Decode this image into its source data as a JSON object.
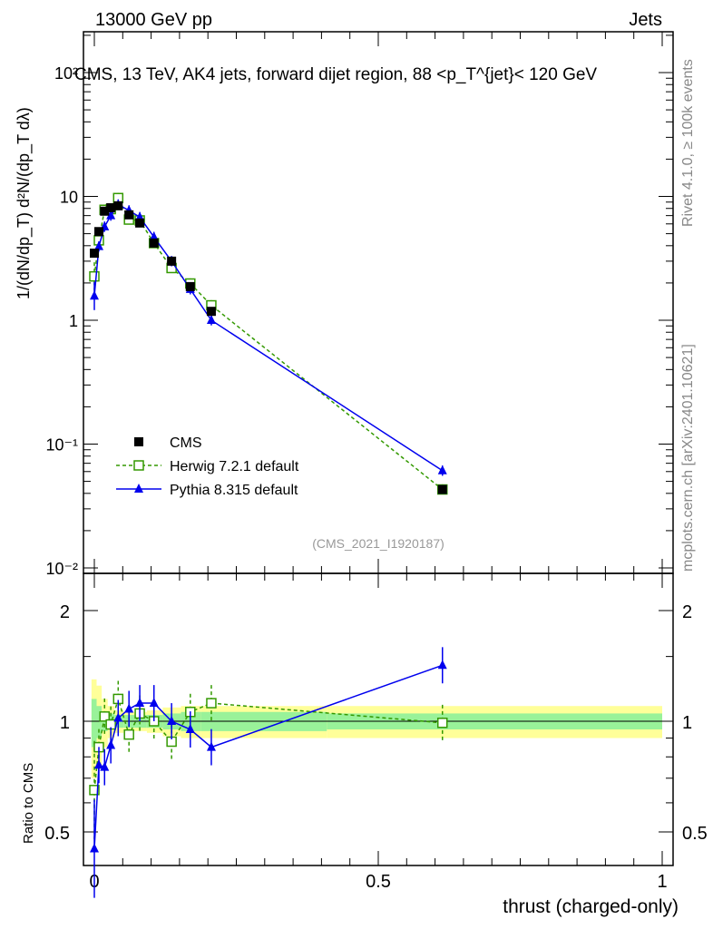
{
  "header": {
    "left": "13000 GeV pp",
    "right": "Jets"
  },
  "side_labels": {
    "rivet": "Rivet 4.1.0, ≥ 100k events",
    "mcplots": "mcplots.cern.ch [arXiv:2401.10621]"
  },
  "chart_data": [
    {
      "type": "line",
      "title": "CMS, 13 TeV, AK4 jets, forward dijet region, 88 <p_T^{jet}< 120 GeV",
      "ylabel": "1/(dN/dp_T) d²N/(dp_T dλ)",
      "yscale": "log",
      "ylim": [
        0.01,
        200
      ],
      "yticks": [
        "10⁻²",
        "10⁻¹",
        "1",
        "10",
        "10²"
      ],
      "xlim": [
        -0.01,
        1.0
      ],
      "x": [
        0,
        0.008,
        0.018,
        0.029,
        0.042,
        0.061,
        0.08,
        0.105,
        0.136,
        0.169,
        0.206,
        0.613
      ],
      "series": [
        {
          "name": "CMS",
          "values": [
            3.48,
            5.2,
            7.6,
            8.1,
            8.4,
            7.1,
            6.1,
            4.2,
            3.0,
            1.87,
            1.18,
            0.043
          ],
          "color": "#000000"
        },
        {
          "name": "Herwig 7.2.1 default",
          "values": [
            2.26,
            4.42,
            7.8,
            7.9,
            9.7,
            6.5,
            6.4,
            4.2,
            2.64,
            1.98,
            1.32,
            0.043
          ],
          "color": "#339900"
        },
        {
          "name": "Pythia 8.315 default",
          "values": [
            1.57,
            3.95,
            5.7,
            7.0,
            8.6,
            7.7,
            6.8,
            4.7,
            3.0,
            1.78,
            1.0,
            0.061
          ],
          "color": "#0000ee"
        }
      ],
      "annotation": "(CMS_2021_I1920187)",
      "legend": "lower-left"
    },
    {
      "type": "line",
      "ylabel": "Ratio to CMS",
      "yscale": "log",
      "ylim": [
        0.4,
        2.4
      ],
      "yticks": [
        "0.5",
        "1",
        "2"
      ],
      "xlabel": "thrust (charged-only)",
      "xticks": [
        "0",
        "0.5",
        "1"
      ],
      "xlim": [
        -0.01,
        1.0
      ],
      "x": [
        0,
        0.008,
        0.018,
        0.029,
        0.042,
        0.061,
        0.08,
        0.105,
        0.136,
        0.169,
        0.206,
        0.613
      ],
      "series": [
        {
          "name": "Herwig 7.2.1 default",
          "values": [
            0.65,
            0.85,
            1.03,
            0.98,
            1.15,
            0.92,
            1.05,
            1.0,
            0.88,
            1.06,
            1.12,
            0.99
          ]
        },
        {
          "name": "Pythia 8.315 default",
          "values": [
            0.45,
            0.76,
            0.75,
            0.86,
            1.02,
            1.08,
            1.12,
            1.12,
            1.0,
            0.95,
            0.85,
            1.42
          ]
        }
      ],
      "band_total": [
        0.3,
        0.25,
        0.15,
        0.1,
        0.07,
        0.06,
        0.06,
        0.07,
        0.09,
        0.1,
        0.1,
        0.1
      ],
      "band_stat": [
        0.15,
        0.1,
        0.06,
        0.05,
        0.04,
        0.04,
        0.04,
        0.04,
        0.05,
        0.06,
        0.06,
        0.05
      ]
    }
  ]
}
